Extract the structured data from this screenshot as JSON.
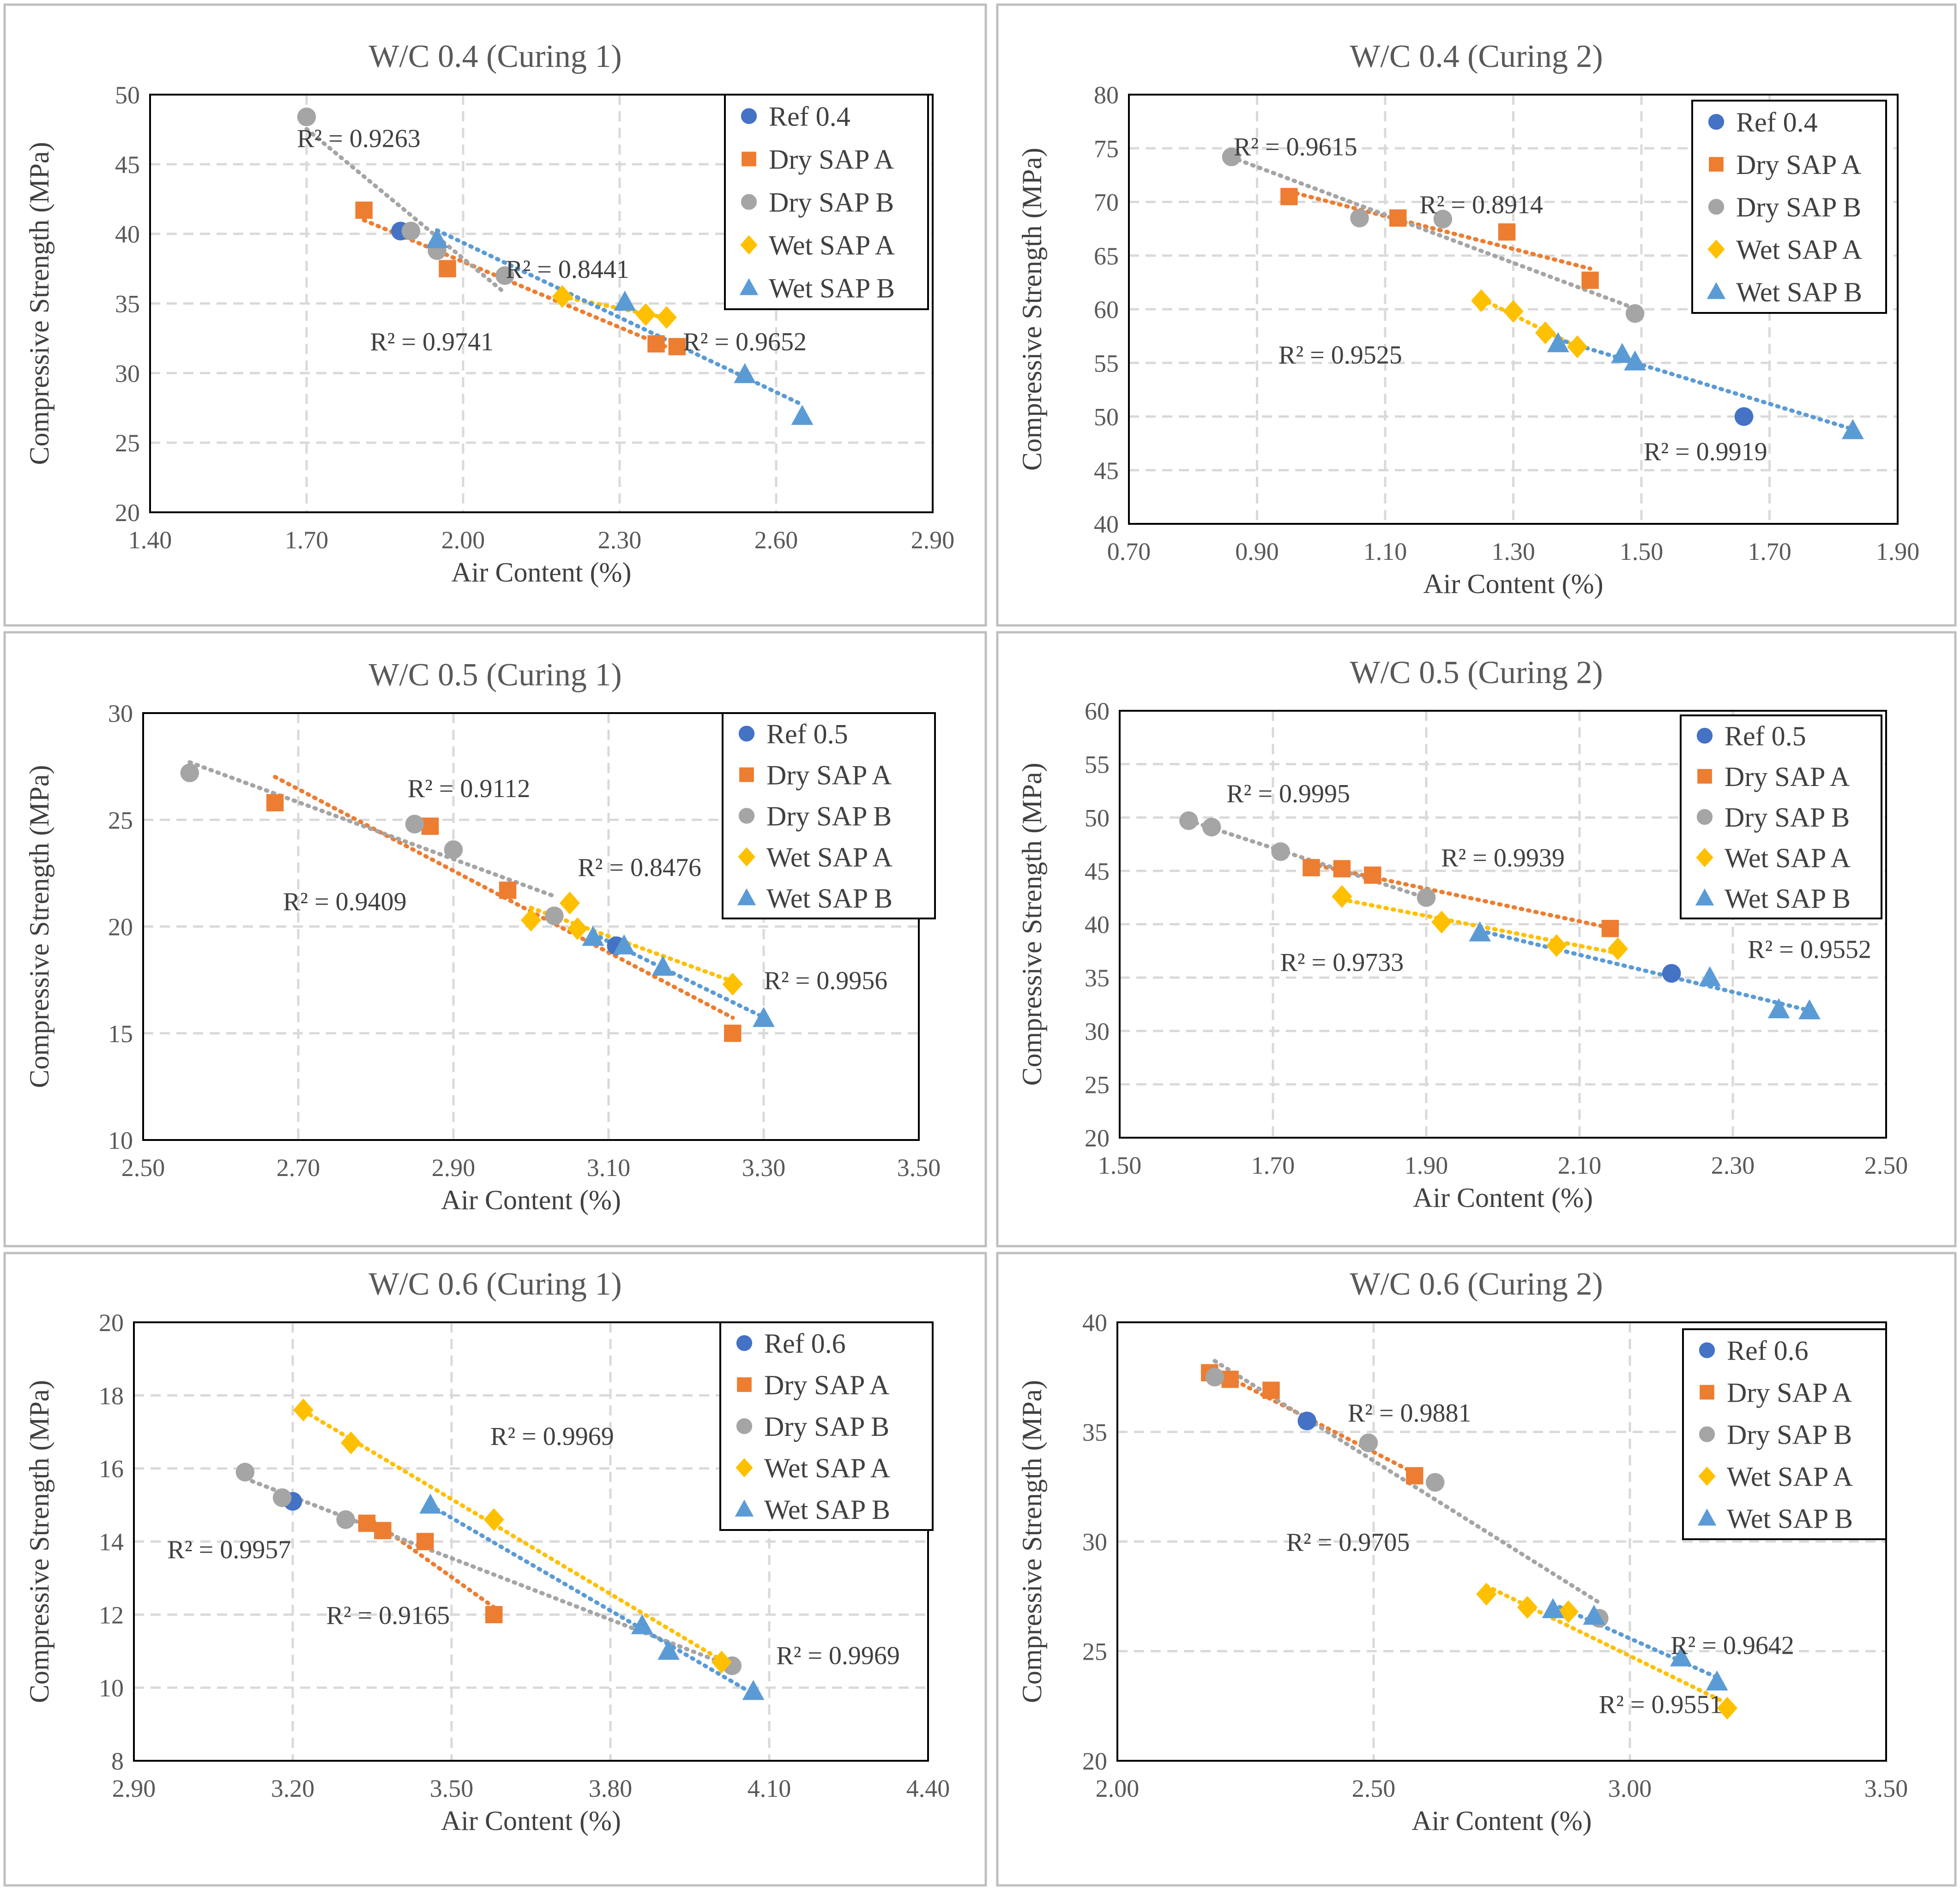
{
  "colors": {
    "ref": "#4472C4",
    "dry_a": "#ED7D31",
    "dry_b": "#A5A5A5",
    "wet_a": "#FFC000",
    "wet_b": "#5B9BD5"
  },
  "chart_data": [
    {
      "type": "scatter",
      "title": "W/C 0.4 (Curing 1)",
      "xlabel": "Air Content (%)",
      "ylabel": "Compressive Strength (MPa)",
      "xlim": [
        1.4,
        2.9
      ],
      "ylim": [
        20,
        50
      ],
      "x_step": 0.3,
      "y_step": 5,
      "x_decimals": 2,
      "x_ticks": [
        "1.40",
        "1.70",
        "2.00",
        "2.30",
        "2.60",
        "2.90"
      ],
      "legend": [
        "Ref 0.4",
        "Dry SAP A",
        "Dry SAP B",
        "Wet SAP A",
        "Wet SAP B"
      ],
      "series": [
        {
          "name": "Ref 0.4",
          "marker": "circle",
          "color_key": "ref",
          "x": [
            1.88
          ],
          "y": [
            40.2
          ],
          "trend": false
        },
        {
          "name": "Dry SAP A",
          "marker": "square",
          "color_key": "dry_a",
          "x": [
            1.81,
            1.97,
            2.37,
            2.41
          ],
          "y": [
            41.7,
            37.5,
            32.1,
            31.9
          ],
          "trend": true
        },
        {
          "name": "Dry SAP B",
          "marker": "circle",
          "color_key": "dry_b",
          "x": [
            1.7,
            1.9,
            1.95,
            2.08
          ],
          "y": [
            48.4,
            40.2,
            38.8,
            37.0
          ],
          "trend": true
        },
        {
          "name": "Wet SAP A",
          "marker": "diamond",
          "color_key": "wet_a",
          "x": [
            2.19,
            2.35,
            2.39
          ],
          "y": [
            35.5,
            34.2,
            34.0
          ],
          "trend": true
        },
        {
          "name": "Wet SAP B",
          "marker": "triangle",
          "color_key": "wet_b",
          "x": [
            1.95,
            2.31,
            2.54,
            2.65
          ],
          "y": [
            39.6,
            35.1,
            29.9,
            26.9
          ],
          "trend": true
        }
      ],
      "annotations": [
        {
          "text": "R² = 0.9263",
          "x": 1.8,
          "y": 46.9
        },
        {
          "text": "R² = 0.8441",
          "x": 2.2,
          "y": 37.5
        },
        {
          "text": "R² = 0.9741",
          "x": 1.94,
          "y": 32.3
        },
        {
          "text": "R² = 0.9652",
          "x": 2.54,
          "y": 32.3
        }
      ]
    },
    {
      "type": "scatter",
      "title": "W/C 0.4 (Curing 2)",
      "xlabel": "Air Content (%)",
      "ylabel": "Compressive Strength (MPa)",
      "xlim": [
        0.7,
        1.9
      ],
      "ylim": [
        40,
        80
      ],
      "x_step": 0.2,
      "y_step": 5,
      "x_decimals": 2,
      "x_ticks": [
        "0.70",
        "0.90",
        "1.10",
        "1.30",
        "1.50",
        "1.70",
        "1.90"
      ],
      "legend": [
        "Ref 0.4",
        "Dry SAP A",
        "Dry SAP B",
        "Wet SAP A",
        "Wet SAP B"
      ],
      "series": [
        {
          "name": "Ref 0.4",
          "marker": "circle",
          "color_key": "ref",
          "x": [
            1.66
          ],
          "y": [
            50.0
          ],
          "trend": false
        },
        {
          "name": "Dry SAP A",
          "marker": "square",
          "color_key": "dry_a",
          "x": [
            0.95,
            1.12,
            1.29,
            1.42
          ],
          "y": [
            70.5,
            68.5,
            67.2,
            62.7
          ],
          "trend": true
        },
        {
          "name": "Dry SAP B",
          "marker": "circle",
          "color_key": "dry_b",
          "x": [
            0.86,
            1.06,
            1.19,
            1.49
          ],
          "y": [
            74.2,
            68.5,
            68.4,
            59.6
          ],
          "trend": true
        },
        {
          "name": "Wet SAP A",
          "marker": "diamond",
          "color_key": "wet_a",
          "x": [
            1.25,
            1.3,
            1.35,
            1.4
          ],
          "y": [
            60.8,
            59.8,
            57.8,
            56.5
          ],
          "trend": true
        },
        {
          "name": "Wet SAP B",
          "marker": "triangle",
          "color_key": "wet_b",
          "x": [
            1.37,
            1.47,
            1.49,
            1.83
          ],
          "y": [
            56.8,
            55.8,
            55.1,
            48.7
          ],
          "trend": true
        }
      ],
      "annotations": [
        {
          "text": "R² = 0.9615",
          "x": 0.96,
          "y": 75.2
        },
        {
          "text": "R² = 0.8914",
          "x": 1.25,
          "y": 69.8
        },
        {
          "text": "R² = 0.9525",
          "x": 1.03,
          "y": 55.8
        },
        {
          "text": "R² = 0.9919",
          "x": 1.6,
          "y": 46.8
        }
      ]
    },
    {
      "type": "scatter",
      "title": "W/C 0.5 (Curing 1)",
      "xlabel": "Air Content (%)",
      "ylabel": "Compressive Strength (MPa)",
      "xlim": [
        2.5,
        3.5
      ],
      "ylim": [
        10,
        30
      ],
      "x_step": 0.2,
      "y_step": 5,
      "x_decimals": 2,
      "x_ticks": [
        "2.50",
        "2.70",
        "2.90",
        "3.10",
        "3.30",
        "3.50"
      ],
      "legend": [
        "Ref 0.5",
        "Dry SAP A",
        "Dry SAP B",
        "Wet SAP A",
        "Wet SAP B"
      ],
      "series": [
        {
          "name": "Ref 0.5",
          "marker": "circle",
          "color_key": "ref",
          "x": [
            3.11
          ],
          "y": [
            19.1
          ],
          "trend": false
        },
        {
          "name": "Dry SAP A",
          "marker": "square",
          "color_key": "dry_a",
          "x": [
            2.67,
            2.87,
            2.97,
            3.26
          ],
          "y": [
            25.8,
            24.7,
            21.7,
            15.0
          ],
          "trend": true
        },
        {
          "name": "Dry SAP B",
          "marker": "circle",
          "color_key": "dry_b",
          "x": [
            2.56,
            2.85,
            2.9,
            3.03
          ],
          "y": [
            27.2,
            24.8,
            23.6,
            20.5
          ],
          "trend": true
        },
        {
          "name": "Wet SAP A",
          "marker": "diamond",
          "color_key": "wet_a",
          "x": [
            3.0,
            3.05,
            3.06,
            3.26
          ],
          "y": [
            20.3,
            21.1,
            19.9,
            17.3
          ],
          "trend": true
        },
        {
          "name": "Wet SAP B",
          "marker": "triangle",
          "color_key": "wet_b",
          "x": [
            3.08,
            3.12,
            3.17,
            3.3
          ],
          "y": [
            19.5,
            19.1,
            18.1,
            15.7
          ],
          "trend": true
        }
      ],
      "annotations": [
        {
          "text": "R² = 0.9112",
          "x": 2.92,
          "y": 26.5
        },
        {
          "text": "R² = 0.8476",
          "x": 3.14,
          "y": 22.8
        },
        {
          "text": "R² = 0.9409",
          "x": 2.76,
          "y": 21.2
        },
        {
          "text": "R² = 0.9956",
          "x": 3.38,
          "y": 17.5
        }
      ]
    },
    {
      "type": "scatter",
      "title": "W/C 0.5 (Curing 2)",
      "xlabel": "Air Content (%)",
      "ylabel": "Compressive Strength (MPa)",
      "xlim": [
        1.5,
        2.5
      ],
      "ylim": [
        20,
        60
      ],
      "x_step": 0.2,
      "y_step": 5,
      "x_decimals": 2,
      "x_ticks": [
        "1.50",
        "1.70",
        "1.90",
        "2.10",
        "2.30",
        "2.50"
      ],
      "legend": [
        "Ref 0.5",
        "Dry SAP A",
        "Dry SAP B",
        "Wet SAP A",
        "Wet SAP B"
      ],
      "series": [
        {
          "name": "Ref 0.5",
          "marker": "circle",
          "color_key": "ref",
          "x": [
            2.22
          ],
          "y": [
            35.4
          ],
          "trend": false
        },
        {
          "name": "Dry SAP A",
          "marker": "square",
          "color_key": "dry_a",
          "x": [
            1.75,
            1.79,
            1.83,
            2.14
          ],
          "y": [
            45.3,
            45.2,
            44.6,
            39.6
          ],
          "trend": true
        },
        {
          "name": "Dry SAP B",
          "marker": "circle",
          "color_key": "dry_b",
          "x": [
            1.59,
            1.62,
            1.71,
            1.9
          ],
          "y": [
            49.7,
            49.1,
            46.8,
            42.5
          ],
          "trend": true
        },
        {
          "name": "Wet SAP A",
          "marker": "diamond",
          "color_key": "wet_a",
          "x": [
            1.79,
            1.92,
            2.07,
            2.15
          ],
          "y": [
            42.6,
            40.2,
            38.0,
            37.7
          ],
          "trend": true
        },
        {
          "name": "Wet SAP B",
          "marker": "triangle",
          "color_key": "wet_b",
          "x": [
            1.97,
            2.27,
            2.36,
            2.4
          ],
          "y": [
            39.2,
            35.0,
            32.0,
            31.9
          ],
          "trend": true
        }
      ],
      "annotations": [
        {
          "text": "R² = 0.9995",
          "x": 1.72,
          "y": 52.3
        },
        {
          "text": "R² = 0.9939",
          "x": 2.0,
          "y": 46.3
        },
        {
          "text": "R² = 0.9733",
          "x": 1.79,
          "y": 36.5
        },
        {
          "text": "R² = 0.9552",
          "x": 2.4,
          "y": 37.7
        }
      ]
    },
    {
      "type": "scatter",
      "title": "W/C 0.6 (Curing 1)",
      "xlabel": "Air Content (%)",
      "ylabel": "Compressive Strength (MPa)",
      "xlim": [
        2.9,
        4.4
      ],
      "ylim": [
        8,
        20
      ],
      "x_step": 0.3,
      "y_step": 2,
      "x_decimals": 2,
      "x_ticks": [
        "2.90",
        "3.20",
        "3.50",
        "3.80",
        "4.10",
        "4.40"
      ],
      "legend": [
        "Ref 0.6",
        "Dry SAP A",
        "Dry SAP B",
        "Wet SAP A",
        "Wet SAP B"
      ],
      "series": [
        {
          "name": "Ref 0.6",
          "marker": "circle",
          "color_key": "ref",
          "x": [
            3.2
          ],
          "y": [
            15.1
          ],
          "trend": false
        },
        {
          "name": "Dry SAP A",
          "marker": "square",
          "color_key": "dry_a",
          "x": [
            3.34,
            3.37,
            3.45,
            3.58
          ],
          "y": [
            14.5,
            14.3,
            14.0,
            12.0
          ],
          "trend": true
        },
        {
          "name": "Dry SAP B",
          "marker": "circle",
          "color_key": "dry_b",
          "x": [
            3.11,
            3.18,
            3.3,
            4.03
          ],
          "y": [
            15.9,
            15.2,
            14.6,
            10.6
          ],
          "trend": true
        },
        {
          "name": "Wet SAP A",
          "marker": "diamond",
          "color_key": "wet_a",
          "x": [
            3.22,
            3.31,
            3.58,
            4.01
          ],
          "y": [
            17.6,
            16.7,
            14.6,
            10.7
          ],
          "trend": true
        },
        {
          "name": "Wet SAP B",
          "marker": "triangle",
          "color_key": "wet_b",
          "x": [
            3.46,
            3.86,
            3.91,
            4.07
          ],
          "y": [
            15.0,
            11.7,
            11.0,
            9.9
          ],
          "trend": true
        }
      ],
      "annotations": [
        {
          "text": "R² = 0.9969",
          "x": 3.69,
          "y": 16.9
        },
        {
          "text": "R² = 0.9957",
          "x": 3.08,
          "y": 13.8
        },
        {
          "text": "R² = 0.9165",
          "x": 3.38,
          "y": 12.0
        },
        {
          "text": "R² = 0.9969",
          "x": 4.23,
          "y": 10.9
        }
      ]
    },
    {
      "type": "scatter",
      "title": "W/C 0.6 (Curing 2)",
      "xlabel": "Air Content (%)",
      "ylabel": "Compressive Strength (MPa)",
      "xlim": [
        2.0,
        3.5
      ],
      "ylim": [
        20,
        40
      ],
      "x_step": 0.5,
      "y_step": 5,
      "x_decimals": 2,
      "x_ticks": [
        "2.00",
        "2.50",
        "3.00",
        "3.50"
      ],
      "legend": [
        "Ref 0.6",
        "Dry SAP A",
        "Dry SAP B",
        "Wet SAP A",
        "Wet SAP B"
      ],
      "series": [
        {
          "name": "Ref 0.6",
          "marker": "circle",
          "color_key": "ref",
          "x": [
            2.37
          ],
          "y": [
            35.5
          ],
          "trend": false
        },
        {
          "name": "Dry SAP A",
          "marker": "square",
          "color_key": "dry_a",
          "x": [
            2.18,
            2.22,
            2.3,
            2.58
          ],
          "y": [
            37.7,
            37.4,
            36.9,
            33.0
          ],
          "trend": true
        },
        {
          "name": "Dry SAP B",
          "marker": "circle",
          "color_key": "dry_b",
          "x": [
            2.19,
            2.49,
            2.62,
            2.94
          ],
          "y": [
            37.5,
            34.5,
            32.7,
            26.5
          ],
          "trend": true
        },
        {
          "name": "Wet SAP A",
          "marker": "diamond",
          "color_key": "wet_a",
          "x": [
            2.72,
            2.8,
            2.88,
            3.19
          ],
          "y": [
            27.6,
            27.0,
            26.8,
            22.4
          ],
          "trend": true
        },
        {
          "name": "Wet SAP B",
          "marker": "triangle",
          "color_key": "wet_b",
          "x": [
            2.85,
            2.93,
            3.1,
            3.17
          ],
          "y": [
            26.9,
            26.6,
            24.7,
            23.6
          ],
          "trend": true
        }
      ],
      "annotations": [
        {
          "text": "R² = 0.9881",
          "x": 2.57,
          "y": 35.9
        },
        {
          "text": "R² = 0.9705",
          "x": 2.45,
          "y": 30.0
        },
        {
          "text": "R² = 0.9642",
          "x": 3.2,
          "y": 25.3
        },
        {
          "text": "R² = 0.9551",
          "x": 3.06,
          "y": 22.6
        }
      ]
    }
  ]
}
